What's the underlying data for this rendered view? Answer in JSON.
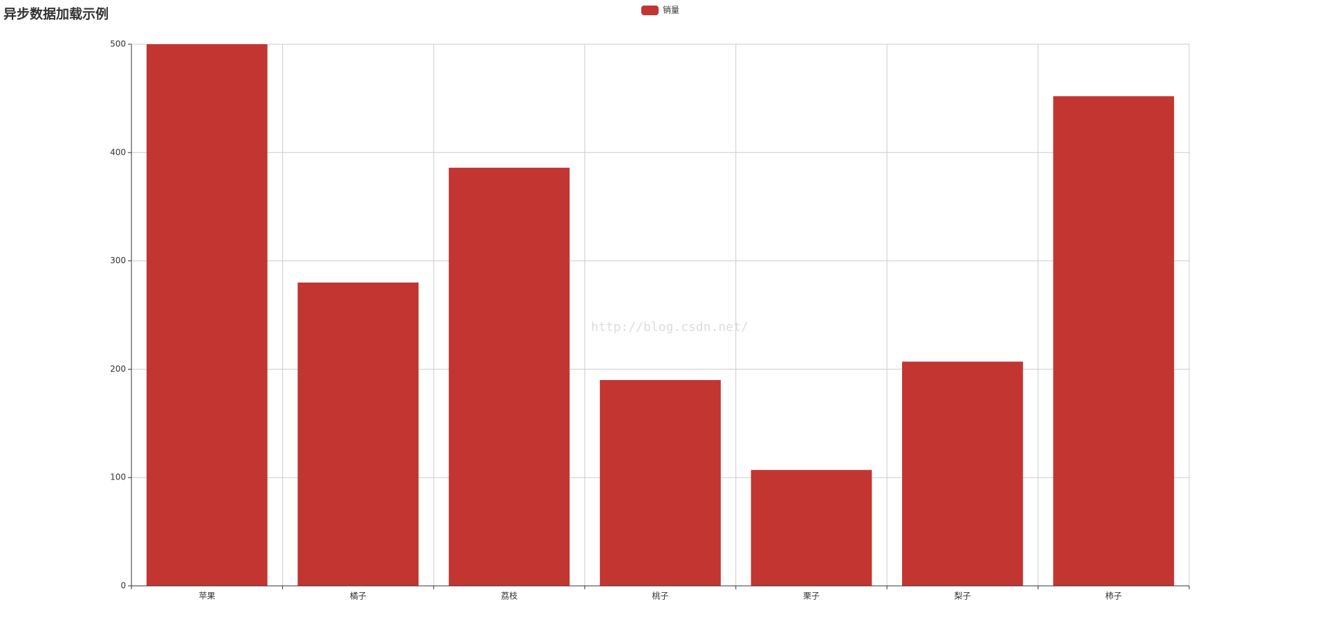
{
  "chart_data": {
    "type": "bar",
    "title": "异步数据加载示例",
    "watermark": "http://blog.csdn.net/",
    "categories": [
      "苹果",
      "橘子",
      "荔枝",
      "桃子",
      "栗子",
      "梨子",
      "柿子"
    ],
    "series": [
      {
        "name": "销量",
        "color": "#c23531",
        "values": [
          500,
          280,
          386,
          190,
          107,
          207,
          452
        ]
      }
    ],
    "ylim": [
      0,
      500
    ],
    "yticks": [
      0,
      100,
      200,
      300,
      400,
      500
    ],
    "grid": true,
    "legend": "top"
  }
}
